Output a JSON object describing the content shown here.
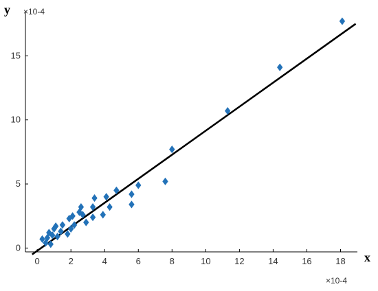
{
  "chart_data": {
    "type": "scatter",
    "title": "",
    "xlabel": "x",
    "ylabel": "y",
    "x_multiplier": "×10-4",
    "y_multiplier": "×10-4",
    "xlim": [
      -0.7,
      19
    ],
    "ylim": [
      -0.3,
      18.5
    ],
    "xticks": [
      0,
      2,
      4,
      6,
      8,
      10,
      12,
      14,
      16,
      18
    ],
    "yticks": [
      0,
      5,
      10,
      15
    ],
    "grid": false,
    "legend": "none",
    "point_color": "#2372b8",
    "line_color": "#000000",
    "points": [
      {
        "x": 0.3,
        "y": 0.7
      },
      {
        "x": 0.5,
        "y": 0.4
      },
      {
        "x": 0.6,
        "y": 0.8
      },
      {
        "x": 0.7,
        "y": 1.2
      },
      {
        "x": 0.8,
        "y": 0.3
      },
      {
        "x": 0.9,
        "y": 1.0
      },
      {
        "x": 1.0,
        "y": 1.5
      },
      {
        "x": 1.1,
        "y": 1.7
      },
      {
        "x": 1.2,
        "y": 0.9
      },
      {
        "x": 1.4,
        "y": 1.3
      },
      {
        "x": 1.5,
        "y": 1.8
      },
      {
        "x": 1.8,
        "y": 1.1
      },
      {
        "x": 1.9,
        "y": 2.3
      },
      {
        "x": 2.0,
        "y": 1.5
      },
      {
        "x": 2.1,
        "y": 2.5
      },
      {
        "x": 2.2,
        "y": 1.8
      },
      {
        "x": 2.5,
        "y": 2.8
      },
      {
        "x": 2.6,
        "y": 3.2
      },
      {
        "x": 2.7,
        "y": 2.6
      },
      {
        "x": 2.9,
        "y": 2.0
      },
      {
        "x": 3.3,
        "y": 2.4
      },
      {
        "x": 3.3,
        "y": 3.2
      },
      {
        "x": 3.4,
        "y": 3.9
      },
      {
        "x": 3.9,
        "y": 2.6
      },
      {
        "x": 4.1,
        "y": 4.0
      },
      {
        "x": 4.3,
        "y": 3.2
      },
      {
        "x": 4.7,
        "y": 4.5
      },
      {
        "x": 5.6,
        "y": 3.4
      },
      {
        "x": 5.6,
        "y": 4.2
      },
      {
        "x": 6.0,
        "y": 4.9
      },
      {
        "x": 7.6,
        "y": 5.2
      },
      {
        "x": 8.0,
        "y": 7.7
      },
      {
        "x": 11.3,
        "y": 10.7
      },
      {
        "x": 14.4,
        "y": 14.1
      },
      {
        "x": 18.1,
        "y": 17.7
      }
    ],
    "fit_line": {
      "x": [
        -0.3,
        18.9
      ],
      "y": [
        -0.5,
        17.5
      ]
    }
  }
}
